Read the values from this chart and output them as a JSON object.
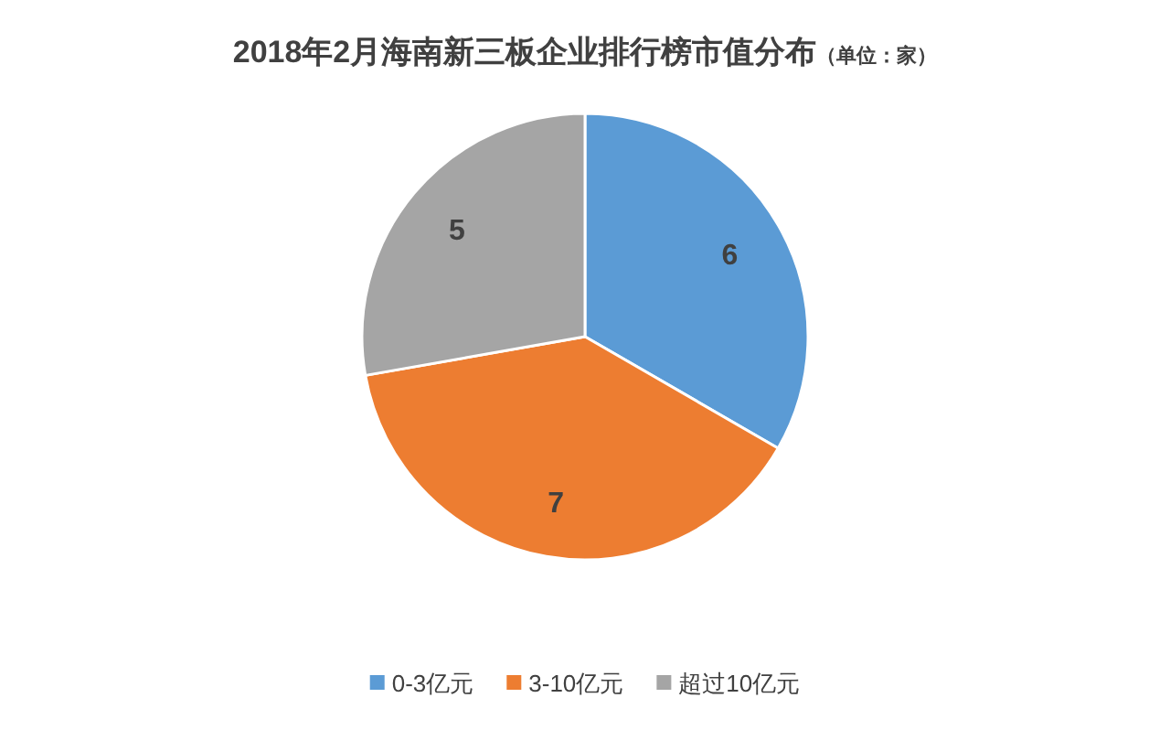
{
  "chart_data": {
    "type": "pie",
    "title": "2018年2月海南新三板企业排行榜市值分布",
    "subtitle": "（单位：家）",
    "categories": [
      "0-3亿元",
      "3-10亿元",
      "超过10亿元"
    ],
    "values": [
      6,
      7,
      5
    ],
    "colors": [
      "#5b9bd5",
      "#ed7d31",
      "#a5a5a5"
    ],
    "data_labels": true,
    "legend": "bottom"
  }
}
